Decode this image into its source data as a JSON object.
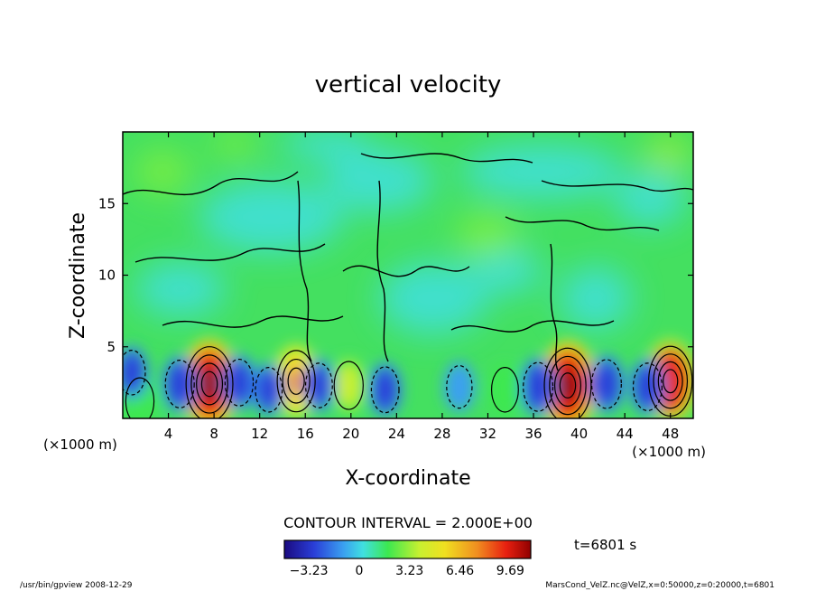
{
  "chart_data": {
    "type": "heatmap",
    "title": "vertical velocity",
    "xlabel": "X-coordinate",
    "ylabel": "Z-coordinate",
    "x_unit_left": "(×1000 m)",
    "x_unit_right": "(×1000 m)",
    "xlim": [
      0,
      50
    ],
    "ylim": [
      0,
      20
    ],
    "xticks": [
      "4",
      "8",
      "12",
      "16",
      "20",
      "24",
      "28",
      "32",
      "36",
      "40",
      "44",
      "48"
    ],
    "yticks": [
      "5",
      "10",
      "15"
    ],
    "contour_interval_text": "CONTOUR INTERVAL = 2.000E+00",
    "time_text": "t=6801 s",
    "colorbar": {
      "range": [
        -4.8,
        11.0
      ],
      "labels": [
        "−3.23",
        "0",
        "3.23",
        "6.46",
        "9.69"
      ],
      "colors": [
        "#1a0a80",
        "#2a3ed8",
        "#3aa0f0",
        "#40e0e0",
        "#3ce850",
        "#c8f030",
        "#f0e020",
        "#f09020",
        "#e82010",
        "#900000"
      ]
    },
    "cells": [
      {
        "x": 7.6,
        "z": 2.4,
        "w": 9.69
      },
      {
        "x": 15.2,
        "z": 2.6,
        "w": 6.5
      },
      {
        "x": 39.0,
        "z": 2.3,
        "w": 9.69
      },
      {
        "x": 48.0,
        "z": 2.6,
        "w": 8.5
      },
      {
        "x": 19.8,
        "z": 2.3,
        "w": 3.3
      },
      {
        "x": 33.5,
        "z": 2.0,
        "w": 2.5
      },
      {
        "x": 1.5,
        "z": 1.2,
        "w": 3.0
      },
      {
        "x": 5.0,
        "z": 2.4,
        "w": -3.23
      },
      {
        "x": 10.2,
        "z": 2.5,
        "w": -3.0
      },
      {
        "x": 12.8,
        "z": 2.0,
        "w": -2.5
      },
      {
        "x": 17.2,
        "z": 2.3,
        "w": -2.5
      },
      {
        "x": 23.0,
        "z": 2.0,
        "w": -2.8
      },
      {
        "x": 29.5,
        "z": 2.2,
        "w": -2.0
      },
      {
        "x": 36.4,
        "z": 2.2,
        "w": -3.5
      },
      {
        "x": 42.4,
        "z": 2.4,
        "w": -3.5
      },
      {
        "x": 46.0,
        "z": 2.2,
        "w": -3.2
      },
      {
        "x": 0.8,
        "z": 3.2,
        "w": -2.5
      }
    ]
  },
  "footer": {
    "left": "/usr/bin/gpview  2008-12-29",
    "right": "MarsCond_VelZ.nc@VelZ,x=0:50000,z=0:20000,t=6801"
  }
}
